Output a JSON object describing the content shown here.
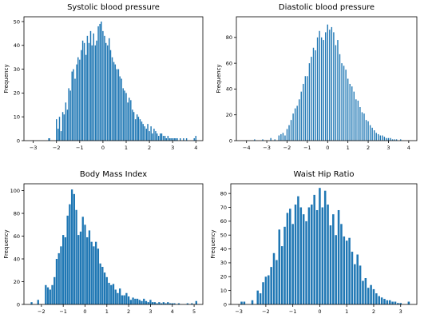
{
  "figure": {
    "background": "#ffffff",
    "bar_color": "#1f77b4"
  },
  "chart_data": [
    {
      "type": "bar",
      "title": "Systolic blood pressure",
      "ylabel": "Frequency",
      "xlim": [
        -3.4,
        4.3
      ],
      "ylim": [
        0,
        52
      ],
      "xticks": [
        -3,
        -2,
        -1,
        0,
        1,
        2,
        3,
        4
      ],
      "yticks": [
        0,
        10,
        20,
        30,
        40,
        50
      ],
      "grid": false,
      "bar_width": 0.05,
      "x": [
        -2.33,
        -2.3,
        -2.0,
        -1.93,
        -1.87,
        -1.8,
        -1.73,
        -1.67,
        -1.6,
        -1.53,
        -1.47,
        -1.4,
        -1.33,
        -1.27,
        -1.2,
        -1.13,
        -1.07,
        -1.0,
        -0.93,
        -0.87,
        -0.8,
        -0.73,
        -0.67,
        -0.6,
        -0.53,
        -0.47,
        -0.4,
        -0.33,
        -0.27,
        -0.2,
        -0.13,
        -0.07,
        0.0,
        0.07,
        0.13,
        0.2,
        0.27,
        0.33,
        0.4,
        0.47,
        0.53,
        0.6,
        0.67,
        0.73,
        0.8,
        0.87,
        0.93,
        1.0,
        1.07,
        1.13,
        1.2,
        1.27,
        1.33,
        1.4,
        1.47,
        1.53,
        1.6,
        1.67,
        1.73,
        1.8,
        1.87,
        1.93,
        2.0,
        2.07,
        2.13,
        2.2,
        2.27,
        2.33,
        2.4,
        2.47,
        2.53,
        2.6,
        2.67,
        2.73,
        2.8,
        2.87,
        2.93,
        3.0,
        3.07,
        3.13,
        3.2,
        3.27,
        3.33,
        3.4,
        3.47,
        3.53,
        3.6,
        3.67,
        3.73,
        3.8,
        3.87,
        3.93,
        4.0
      ],
      "values": [
        1,
        1,
        9,
        5,
        10,
        4,
        12,
        11,
        16,
        13,
        22,
        21,
        29,
        30,
        26,
        32,
        35,
        34,
        38,
        42,
        41,
        36,
        44,
        41,
        46,
        40,
        45,
        40,
        42,
        48,
        49,
        50,
        46,
        44,
        41,
        40,
        43,
        38,
        35,
        33,
        32,
        30,
        30,
        27,
        26,
        22,
        21,
        20,
        16,
        18,
        17,
        13,
        12,
        9,
        11,
        10,
        9,
        8,
        7,
        6,
        5,
        7,
        4,
        6,
        3,
        5,
        4,
        3,
        2,
        3,
        3,
        2,
        2,
        1,
        2,
        1,
        1,
        1,
        1,
        1,
        1,
        0,
        1,
        0,
        1,
        0,
        1,
        0,
        0,
        0,
        0,
        1,
        2
      ]
    },
    {
      "type": "bar",
      "title": "Diastolic blood pressure",
      "ylabel": "Frequency",
      "xlim": [
        -4.5,
        4.4
      ],
      "ylim": [
        0,
        96
      ],
      "xticks": [
        -4,
        -3,
        -2,
        -1,
        0,
        1,
        2,
        3,
        4
      ],
      "yticks": [
        0,
        20,
        40,
        60,
        80
      ],
      "grid": false,
      "bar_width": 0.055,
      "x": [
        -3.6,
        -3.2,
        -2.8,
        -2.6,
        -2.4,
        -2.3,
        -2.2,
        -2.1,
        -2.0,
        -1.9,
        -1.8,
        -1.7,
        -1.6,
        -1.5,
        -1.4,
        -1.3,
        -1.2,
        -1.1,
        -1.0,
        -0.9,
        -0.8,
        -0.7,
        -0.6,
        -0.5,
        -0.4,
        -0.3,
        -0.2,
        -0.1,
        0.0,
        0.1,
        0.2,
        0.3,
        0.4,
        0.5,
        0.6,
        0.7,
        0.8,
        0.9,
        1.0,
        1.1,
        1.2,
        1.3,
        1.4,
        1.5,
        1.6,
        1.7,
        1.8,
        1.9,
        2.0,
        2.1,
        2.2,
        2.3,
        2.4,
        2.5,
        2.6,
        2.7,
        2.8,
        2.9,
        3.0,
        3.1,
        3.2,
        3.3,
        3.4,
        3.6,
        3.8,
        4.0
      ],
      "values": [
        1,
        1,
        2,
        1,
        4,
        5,
        6,
        4,
        9,
        12,
        16,
        21,
        25,
        27,
        32,
        38,
        44,
        50,
        50,
        60,
        65,
        72,
        70,
        80,
        85,
        80,
        78,
        84,
        90,
        86,
        88,
        84,
        74,
        78,
        67,
        60,
        58,
        55,
        48,
        44,
        42,
        38,
        32,
        31,
        26,
        22,
        21,
        16,
        15,
        12,
        10,
        8,
        6,
        5,
        4,
        4,
        3,
        2,
        2,
        2,
        1,
        1,
        1,
        1,
        0,
        0
      ]
    },
    {
      "type": "bar",
      "title": "Body Mass Index",
      "ylabel": "Frequency",
      "xlim": [
        -2.8,
        5.4
      ],
      "ylim": [
        0,
        106
      ],
      "xticks": [
        -2,
        -1,
        0,
        1,
        2,
        3,
        4,
        5
      ],
      "yticks": [
        0,
        20,
        40,
        60,
        80,
        100
      ],
      "grid": false,
      "bar_width": 0.085,
      "x": [
        -2.45,
        -2.15,
        -1.8,
        -1.7,
        -1.6,
        -1.5,
        -1.4,
        -1.3,
        -1.2,
        -1.1,
        -1.0,
        -0.9,
        -0.8,
        -0.7,
        -0.6,
        -0.5,
        -0.4,
        -0.3,
        -0.2,
        -0.1,
        0.0,
        0.1,
        0.2,
        0.3,
        0.4,
        0.5,
        0.6,
        0.7,
        0.8,
        0.9,
        1.0,
        1.1,
        1.2,
        1.3,
        1.4,
        1.5,
        1.6,
        1.7,
        1.8,
        1.9,
        2.0,
        2.1,
        2.2,
        2.3,
        2.4,
        2.5,
        2.6,
        2.7,
        2.8,
        2.9,
        3.0,
        3.1,
        3.2,
        3.3,
        3.4,
        3.5,
        3.6,
        3.7,
        3.8,
        3.9,
        4.0,
        4.1,
        4.2,
        4.3,
        4.5,
        4.7,
        4.9,
        5.1
      ],
      "values": [
        2,
        4,
        17,
        15,
        13,
        17,
        24,
        40,
        45,
        51,
        61,
        59,
        78,
        88,
        101,
        97,
        83,
        61,
        64,
        77,
        70,
        59,
        65,
        55,
        51,
        55,
        49,
        36,
        33,
        28,
        24,
        19,
        17,
        18,
        13,
        10,
        14,
        8,
        8,
        10,
        7,
        4,
        6,
        5,
        5,
        4,
        3,
        5,
        3,
        2,
        4,
        2,
        2,
        1,
        2,
        1,
        2,
        1,
        2,
        1,
        1,
        1,
        0,
        1,
        0,
        1,
        1,
        3
      ]
    },
    {
      "type": "bar",
      "title": "Waist Hip Ratio",
      "ylabel": "Frequency",
      "xlim": [
        -3.3,
        3.6
      ],
      "ylim": [
        0,
        87
      ],
      "xticks": [
        -3,
        -2,
        -1,
        0,
        1,
        2,
        3
      ],
      "yticks": [
        0,
        10,
        20,
        30,
        40,
        50,
        60,
        70,
        80
      ],
      "grid": false,
      "bar_width": 0.075,
      "x": [
        -2.9,
        -2.8,
        -2.5,
        -2.3,
        -2.2,
        -2.1,
        -2.0,
        -1.9,
        -1.8,
        -1.7,
        -1.6,
        -1.5,
        -1.4,
        -1.3,
        -1.2,
        -1.1,
        -1.0,
        -0.9,
        -0.8,
        -0.7,
        -0.6,
        -0.5,
        -0.4,
        -0.3,
        -0.2,
        -0.1,
        0.0,
        0.1,
        0.2,
        0.3,
        0.4,
        0.5,
        0.6,
        0.7,
        0.8,
        0.9,
        1.0,
        1.1,
        1.2,
        1.3,
        1.4,
        1.5,
        1.6,
        1.7,
        1.8,
        1.9,
        2.0,
        2.1,
        2.2,
        2.3,
        2.4,
        2.5,
        2.6,
        2.7,
        2.8,
        2.9,
        3.0,
        3.3
      ],
      "values": [
        2,
        2,
        3,
        10,
        8,
        16,
        20,
        21,
        27,
        37,
        32,
        54,
        42,
        56,
        66,
        69,
        58,
        72,
        78,
        70,
        65,
        60,
        70,
        72,
        79,
        68,
        84,
        70,
        82,
        72,
        57,
        65,
        50,
        68,
        58,
        49,
        46,
        48,
        38,
        29,
        36,
        28,
        17,
        19,
        12,
        14,
        11,
        8,
        6,
        5,
        4,
        3,
        3,
        2,
        2,
        1,
        1,
        2
      ]
    }
  ]
}
